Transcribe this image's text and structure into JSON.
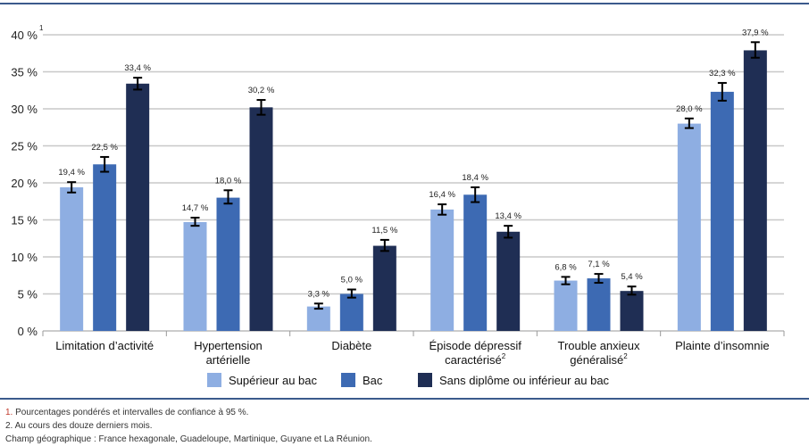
{
  "chart_data": {
    "type": "bar",
    "title": "",
    "ylabel": "",
    "ylabel_footnote": "1",
    "ylim": [
      0,
      40
    ],
    "yticks": [
      0,
      5,
      10,
      15,
      20,
      25,
      30,
      35,
      40
    ],
    "ytick_labels": [
      "0 %",
      "5 %",
      "10 %",
      "15 %",
      "20 %",
      "25 %",
      "30 %",
      "35 %",
      "40 %"
    ],
    "grid": true,
    "legend_position": "bottom",
    "categories": [
      {
        "label": [
          "Limitation d’activité"
        ],
        "sup": ""
      },
      {
        "label": [
          "Hypertension",
          "artérielle"
        ],
        "sup": ""
      },
      {
        "label": [
          "Diabète"
        ],
        "sup": ""
      },
      {
        "label": [
          "Épisode dépressif",
          "caractérisé"
        ],
        "sup": "2"
      },
      {
        "label": [
          "Trouble anxieux",
          "généralisé"
        ],
        "sup": "2"
      },
      {
        "label": [
          "Plainte d’insomnie"
        ],
        "sup": ""
      }
    ],
    "series": [
      {
        "name": "Supérieur au bac",
        "color": "#8eaee2",
        "values": [
          19.4,
          14.7,
          3.3,
          16.4,
          6.8,
          28.0
        ],
        "labels": [
          "19,4 %",
          "14,7 %",
          "3,3 %",
          "16,4 %",
          "6,8 %",
          "28,0 %"
        ],
        "ci": [
          [
            18.7,
            20.1
          ],
          [
            14.2,
            15.3
          ],
          [
            3.0,
            3.7
          ],
          [
            15.7,
            17.1
          ],
          [
            6.3,
            7.3
          ],
          [
            27.4,
            28.7
          ]
        ]
      },
      {
        "name": "Bac",
        "color": "#3d6ab3",
        "values": [
          22.5,
          18.0,
          5.0,
          18.4,
          7.1,
          32.3
        ],
        "labels": [
          "22,5 %",
          "18,0 %",
          "5,0 %",
          "18,4 %",
          "7,1 %",
          "32,3 %"
        ],
        "ci": [
          [
            21.5,
            23.5
          ],
          [
            17.2,
            19.0
          ],
          [
            4.5,
            5.6
          ],
          [
            17.4,
            19.4
          ],
          [
            6.5,
            7.7
          ],
          [
            31.1,
            33.5
          ]
        ]
      },
      {
        "name": "Sans diplôme ou inférieur au bac",
        "color": "#1f2e54",
        "values": [
          33.4,
          30.2,
          11.5,
          13.4,
          5.4,
          37.9
        ],
        "labels": [
          "33,4 %",
          "30,2 %",
          "11,5 %",
          "13,4 %",
          "5,4 %",
          "37,9 %"
        ],
        "ci": [
          [
            32.6,
            34.2
          ],
          [
            29.2,
            31.2
          ],
          [
            10.8,
            12.3
          ],
          [
            12.6,
            14.2
          ],
          [
            4.9,
            6.0
          ],
          [
            36.9,
            39.0
          ]
        ]
      }
    ]
  },
  "footnotes": {
    "n1_num": "1.",
    "n1": " Pourcentages pondérés et intervalles de confiance à 95 %.",
    "n2": "2. Au cours des douze derniers mois.",
    "champ": "Champ géographique : France hexagonale, Guadeloupe, Martinique, Guyane et La Réunion."
  }
}
